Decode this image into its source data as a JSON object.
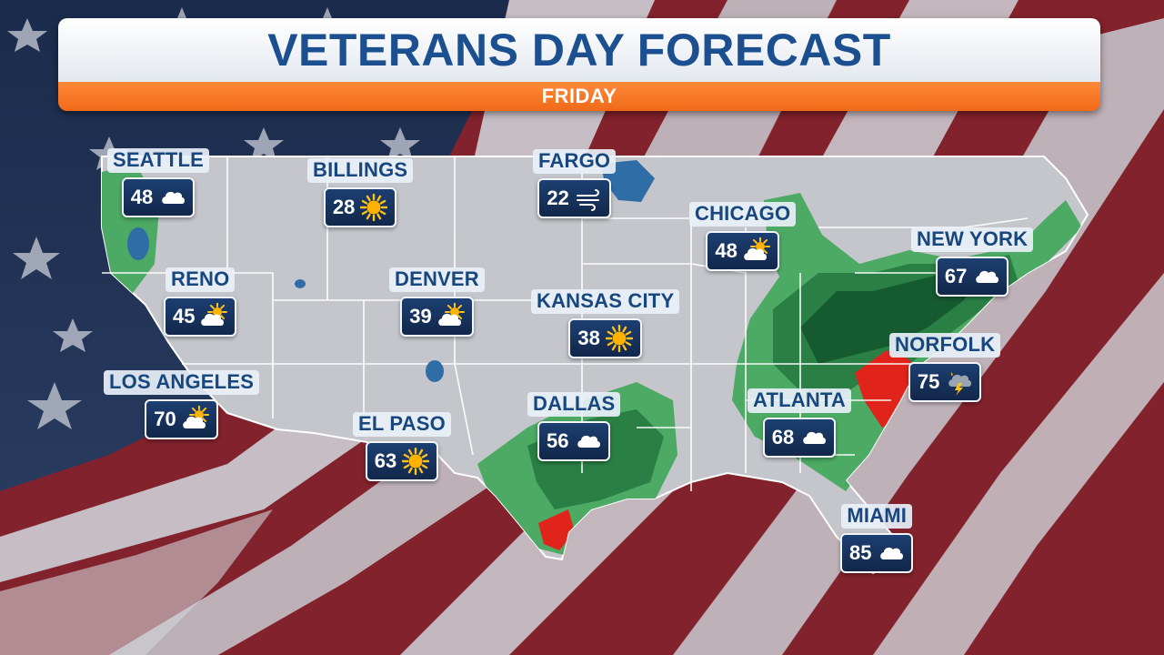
{
  "header": {
    "title": "VETERANS DAY FORECAST",
    "subtitle": "FRIDAY"
  },
  "cities": [
    {
      "name": "SEATTLE",
      "temp": "48",
      "icon": "cloud-icon"
    },
    {
      "name": "BILLINGS",
      "temp": "28",
      "icon": "sun-icon"
    },
    {
      "name": "FARGO",
      "temp": "22",
      "icon": "wind-icon"
    },
    {
      "name": "CHICAGO",
      "temp": "48",
      "icon": "partly-cloudy-icon"
    },
    {
      "name": "NEW YORK",
      "temp": "67",
      "icon": "cloud-icon"
    },
    {
      "name": "RENO",
      "temp": "45",
      "icon": "partly-cloudy-icon"
    },
    {
      "name": "DENVER",
      "temp": "39",
      "icon": "partly-cloudy-icon"
    },
    {
      "name": "KANSAS CITY",
      "temp": "38",
      "icon": "sun-icon"
    },
    {
      "name": "NORFOLK",
      "temp": "75",
      "icon": "thunderstorm-icon"
    },
    {
      "name": "LOS ANGELES",
      "temp": "70",
      "icon": "partly-cloudy-icon"
    },
    {
      "name": "DALLAS",
      "temp": "56",
      "icon": "cloud-icon"
    },
    {
      "name": "ATLANTA",
      "temp": "68",
      "icon": "cloud-icon"
    },
    {
      "name": "EL PASO",
      "temp": "63",
      "icon": "sun-icon"
    },
    {
      "name": "MIAMI",
      "temp": "85",
      "icon": "cloud-icon"
    }
  ],
  "colors": {
    "title_blue": "#1c4f8f",
    "subtitle_bar": "#f47a28",
    "box_navy": "#16305a",
    "map_land": "#c4c6cb",
    "rain_light": "#4caa64",
    "rain_medium": "#2a7f45",
    "rain_heavy": "#165a30",
    "severe_red": "#e0241b",
    "water_blue": "#2f6da6"
  }
}
